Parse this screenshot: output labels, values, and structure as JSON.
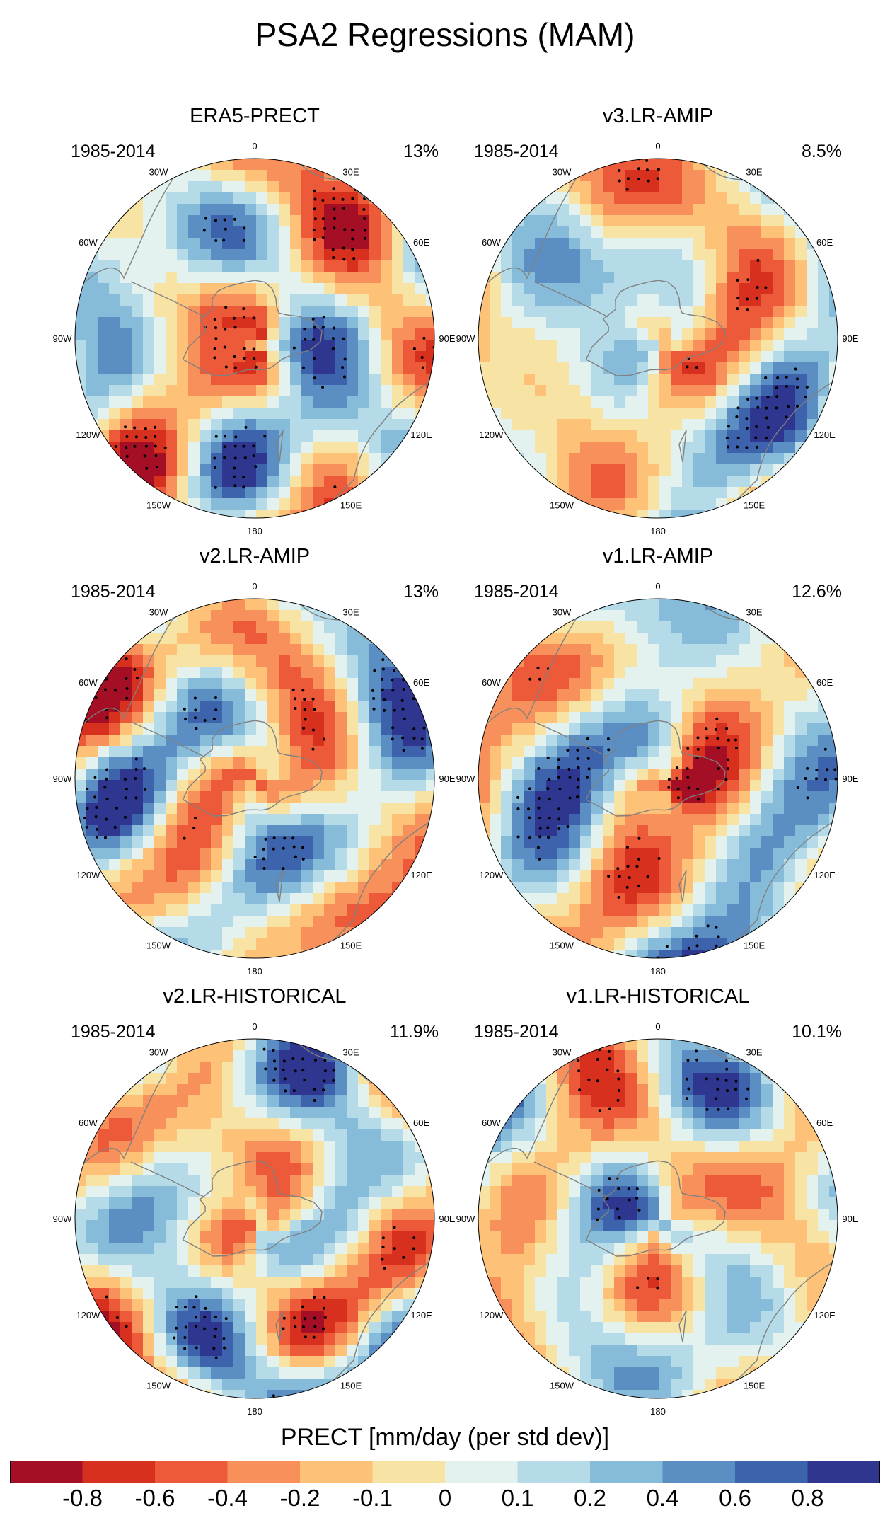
{
  "title": "PSA2 Regressions (MAM)",
  "colors": {
    "palette": [
      "#a50f26",
      "#d7301f",
      "#ed5a3a",
      "#f7905a",
      "#fdc177",
      "#f7e3a4",
      "#e3f2ee",
      "#b5dbe9",
      "#86bcd9",
      "#5b8fc4",
      "#3d63ad",
      "#2e3690"
    ],
    "coast": "#808080",
    "rim": "#000000"
  },
  "chart_data": [
    {
      "type": "heatmap",
      "projection": "south-polar-stereographic",
      "variable": "PRECT",
      "title": "ERA5-PRECT",
      "period": "1985-2014",
      "variance_explained": "13%",
      "lon_labels": [
        "0",
        "30E",
        "60E",
        "90E",
        "120E",
        "150E",
        "180",
        "150W",
        "120W",
        "90W",
        "60W",
        "30W"
      ]
    },
    {
      "type": "heatmap",
      "projection": "south-polar-stereographic",
      "variable": "PRECT",
      "title": "v3.LR-AMIP",
      "period": "1985-2014",
      "variance_explained": "8.5%",
      "lon_labels": [
        "0",
        "30E",
        "60E",
        "90E",
        "120E",
        "150E",
        "180",
        "150W",
        "120W",
        "90W",
        "60W",
        "30W"
      ]
    },
    {
      "type": "heatmap",
      "projection": "south-polar-stereographic",
      "variable": "PRECT",
      "title": "v2.LR-AMIP",
      "period": "1985-2014",
      "variance_explained": "13%",
      "lon_labels": [
        "0",
        "30E",
        "60E",
        "90E",
        "120E",
        "150E",
        "180",
        "150W",
        "120W",
        "90W",
        "60W",
        "30W"
      ]
    },
    {
      "type": "heatmap",
      "projection": "south-polar-stereographic",
      "variable": "PRECT",
      "title": "v1.LR-AMIP",
      "period": "1985-2014",
      "variance_explained": "12.6%",
      "lon_labels": [
        "0",
        "30E",
        "60E",
        "90E",
        "120E",
        "150E",
        "180",
        "150W",
        "120W",
        "90W",
        "60W",
        "30W"
      ]
    },
    {
      "type": "heatmap",
      "projection": "south-polar-stereographic",
      "variable": "PRECT",
      "title": "v2.LR-HISTORICAL",
      "period": "1985-2014",
      "variance_explained": "11.9%",
      "lon_labels": [
        "0",
        "30E",
        "60E",
        "90E",
        "120E",
        "150E",
        "180",
        "150W",
        "120W",
        "90W",
        "60W",
        "30W"
      ]
    },
    {
      "type": "heatmap",
      "projection": "south-polar-stereographic",
      "variable": "PRECT",
      "title": "v1.LR-HISTORICAL",
      "period": "1985-2014",
      "variance_explained": "10.1%",
      "lon_labels": [
        "0",
        "30E",
        "60E",
        "90E",
        "120E",
        "150E",
        "180",
        "150W",
        "120W",
        "90W",
        "60W",
        "30W"
      ]
    }
  ],
  "colorbar": {
    "title": "PRECT [mm/day (per std dev)]",
    "tick_labels": [
      "-0.8",
      "-0.6",
      "-0.4",
      "-0.2",
      "-0.1",
      "0",
      "0.1",
      "0.2",
      "0.4",
      "0.6",
      "0.8"
    ]
  }
}
